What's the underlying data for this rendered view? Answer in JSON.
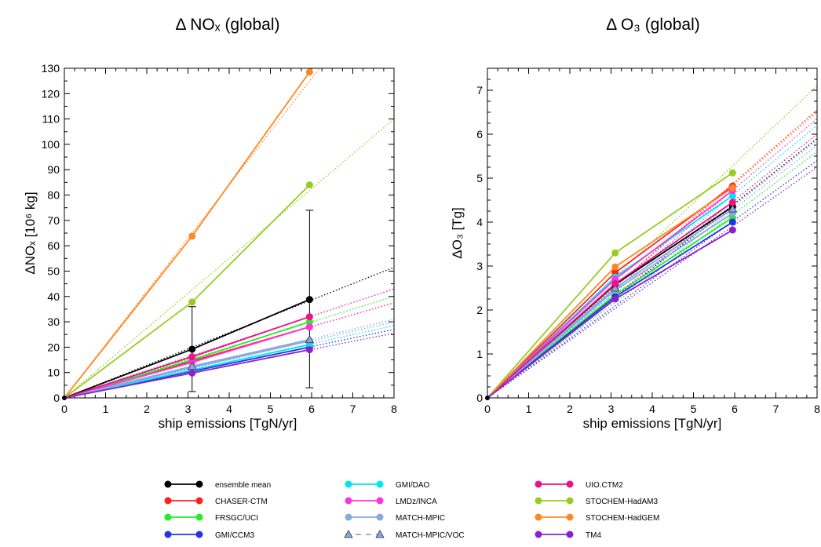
{
  "chart_data": [
    {
      "type": "line",
      "title": "Δ NOₓ (global)",
      "xlabel": "ship emissions [TgN/yr]",
      "ylabel": "ΔNOₓ [10⁶ kg]",
      "xlim": [
        0,
        8
      ],
      "ylim": [
        0,
        130
      ],
      "xticks": [
        0,
        1,
        2,
        3,
        4,
        5,
        6,
        7,
        8
      ],
      "yticks": [
        0,
        10,
        20,
        30,
        40,
        50,
        60,
        70,
        80,
        90,
        100,
        110,
        120,
        130
      ],
      "x": [
        0,
        3.1,
        5.95
      ],
      "series": [
        {
          "name": "ensemble mean",
          "values": [
            0,
            19.2,
            38.8
          ],
          "color": "#000000",
          "marker": "circle",
          "trend_to_x8": 51.5,
          "error_bars": [
            null,
            [
              2.5,
              36
            ],
            [
              4,
              74
            ]
          ]
        },
        {
          "name": "CHASER-CTM",
          "values": [
            0,
            14.5,
            28
          ],
          "color": "#ff2020",
          "marker": "circle",
          "trend_to_x8": 37.5
        },
        {
          "name": "FRSGC/UCI",
          "values": [
            0,
            15,
            30
          ],
          "color": "#22ee22",
          "marker": "circle",
          "trend_to_x8": 40
        },
        {
          "name": "GMI/CCM3",
          "values": [
            0,
            10.5,
            20
          ],
          "color": "#2233ee",
          "marker": "circle",
          "trend_to_x8": 27
        },
        {
          "name": "GMI/DAO",
          "values": [
            0,
            11,
            21
          ],
          "color": "#00e5ee",
          "marker": "circle",
          "trend_to_x8": 28.5
        },
        {
          "name": "LMDz/INCA",
          "values": [
            0,
            14,
            28
          ],
          "color": "#ff33dd",
          "marker": "circle",
          "trend_to_x8": 37.5
        },
        {
          "name": "MATCH-MPIC",
          "values": [
            0,
            12,
            22.5
          ],
          "color": "#88aadd",
          "marker": "circle",
          "trend_to_x8": 30
        },
        {
          "name": "MATCH-MPIC/VOC",
          "values": [
            0,
            12.5,
            23
          ],
          "color": "#88aadd",
          "marker": "triangle",
          "dashed": true,
          "trend_to_x8": 31
        },
        {
          "name": "UIO.CTM2",
          "values": [
            0,
            16.2,
            32
          ],
          "color": "#ee1188",
          "marker": "circle",
          "trend_to_x8": 43
        },
        {
          "name": "STOCHEM-HadAM3",
          "values": [
            0,
            37.8,
            84
          ],
          "color": "#99cc22",
          "marker": "circle",
          "trend_to_x8": 110
        },
        {
          "name": "STOCHEM-HadGEM",
          "values": [
            0,
            63.8,
            128.5
          ],
          "color": "#ff8822",
          "marker": "circle",
          "trend_to_x8": 168
        },
        {
          "name": "TM4",
          "values": [
            0,
            9.8,
            19
          ],
          "color": "#8822cc",
          "marker": "circle",
          "trend_to_x8": 25.5
        }
      ]
    },
    {
      "type": "line",
      "title": "Δ O₃ (global)",
      "xlabel": "ship emissions [TgN/yr]",
      "ylabel": "ΔO₃ [Tg]",
      "xlim": [
        0,
        8
      ],
      "ylim": [
        0,
        7.5
      ],
      "xticks": [
        0,
        1,
        2,
        3,
        4,
        5,
        6,
        7,
        8
      ],
      "yticks": [
        0,
        1,
        2,
        3,
        4,
        5,
        6,
        7
      ],
      "x": [
        0,
        3.1,
        5.95
      ],
      "series": [
        {
          "name": "ensemble mean",
          "values": [
            0,
            2.58,
            4.35
          ],
          "color": "#000000",
          "marker": "circle",
          "trend_to_x8": 5.9
        },
        {
          "name": "CHASER-CTM",
          "values": [
            0,
            2.85,
            4.82
          ],
          "color": "#ff2020",
          "marker": "circle",
          "trend_to_x8": 6.55
        },
        {
          "name": "FRSGC/UCI",
          "values": [
            0,
            2.35,
            4.1
          ],
          "color": "#22ee22",
          "marker": "circle",
          "trend_to_x8": 5.6
        },
        {
          "name": "GMI/CCM3",
          "values": [
            0,
            2.3,
            4.0
          ],
          "color": "#2233ee",
          "marker": "circle",
          "trend_to_x8": 5.4
        },
        {
          "name": "GMI/DAO",
          "values": [
            0,
            2.75,
            4.6
          ],
          "color": "#00e5ee",
          "marker": "circle",
          "trend_to_x8": 6.2
        },
        {
          "name": "LMDz/INCA",
          "values": [
            0,
            2.7,
            4.72
          ],
          "color": "#ff33dd",
          "marker": "circle",
          "trend_to_x8": 6.35
        },
        {
          "name": "MATCH-MPIC",
          "values": [
            0,
            2.45,
            4.2
          ],
          "color": "#88aadd",
          "marker": "circle",
          "trend_to_x8": 5.75
        },
        {
          "name": "MATCH-MPIC/VOC",
          "values": [
            0,
            2.5,
            4.3
          ],
          "color": "#88aadd",
          "marker": "triangle",
          "dashed": true,
          "trend_to_x8": 5.85
        },
        {
          "name": "UIO.CTM2",
          "values": [
            0,
            2.6,
            4.45
          ],
          "color": "#ee1188",
          "marker": "circle",
          "trend_to_x8": 6.0
        },
        {
          "name": "STOCHEM-HadAM3",
          "values": [
            0,
            3.3,
            5.12
          ],
          "color": "#99cc22",
          "marker": "circle",
          "trend_to_x8": 7.1
        },
        {
          "name": "STOCHEM-HadGEM",
          "values": [
            0,
            2.98,
            4.78
          ],
          "color": "#ff8822",
          "marker": "circle",
          "trend_to_x8": 6.5
        },
        {
          "name": "TM4",
          "values": [
            0,
            2.25,
            3.82
          ],
          "color": "#8822cc",
          "marker": "circle",
          "trend_to_x8": 5.25
        }
      ]
    }
  ]
}
